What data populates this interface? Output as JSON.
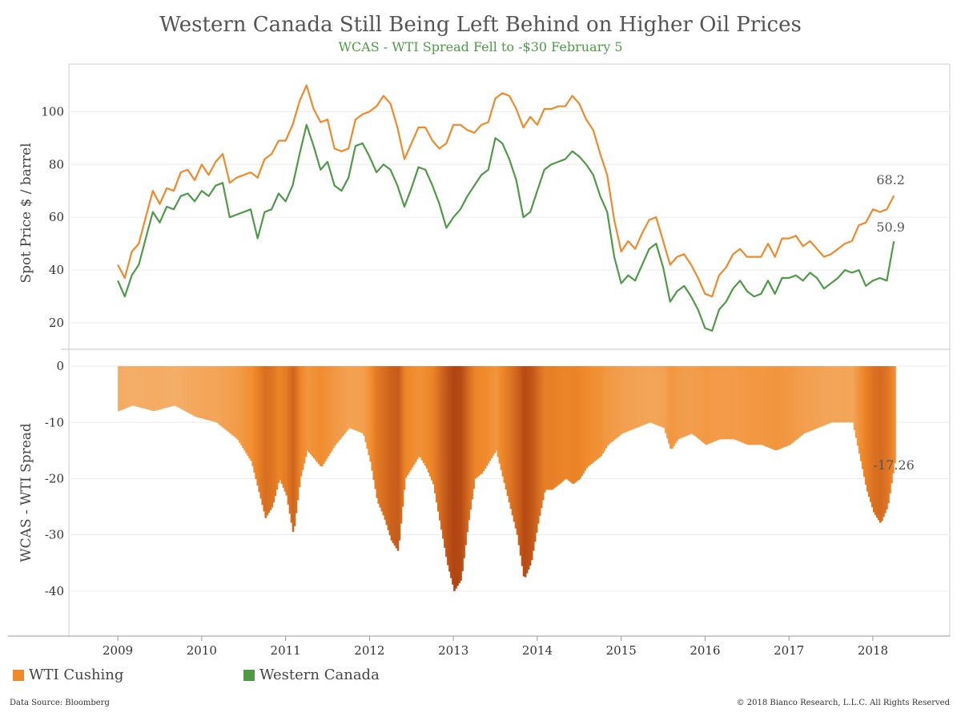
{
  "chart_data": {
    "type": "line",
    "title": "Western Canada Still Being Left Behind on Higher Oil Prices",
    "subtitle": "WCAS - WTI Spread Fell to -$30 February 5",
    "colors": {
      "wti": "#F0892A",
      "wcs": "#4E9A46",
      "subtitle": "#4E9A46"
    },
    "top_panel": {
      "ylabel": "Spot Price $ / barrel",
      "ylim": [
        10,
        118
      ],
      "yticks": [
        "20",
        "40",
        "60",
        "80",
        "100"
      ],
      "grid": true
    },
    "bottom_panel": {
      "type": "bar",
      "ylabel": "WCAS - WTI Spread",
      "ylim": [
        -48,
        3
      ],
      "yticks": [
        "0",
        "-10",
        "-20",
        "-30",
        "-40"
      ],
      "grid": true
    },
    "x": {
      "ticks": [
        "2009",
        "2010",
        "2011",
        "2012",
        "2013",
        "2014",
        "2015",
        "2016",
        "2017",
        "2018"
      ],
      "range": [
        "2008-06",
        "2018-12"
      ]
    },
    "series": [
      {
        "name": "WTI Cushing",
        "points": [
          [
            "2009-01",
            42
          ],
          [
            "2009-02",
            37
          ],
          [
            "2009-03",
            47
          ],
          [
            "2009-04",
            50
          ],
          [
            "2009-05",
            60
          ],
          [
            "2009-06",
            70
          ],
          [
            "2009-07",
            65
          ],
          [
            "2009-08",
            71
          ],
          [
            "2009-09",
            70
          ],
          [
            "2009-10",
            77
          ],
          [
            "2009-11",
            78
          ],
          [
            "2009-12",
            74
          ],
          [
            "2010-01",
            80
          ],
          [
            "2010-02",
            76
          ],
          [
            "2010-03",
            81
          ],
          [
            "2010-04",
            84
          ],
          [
            "2010-05",
            73
          ],
          [
            "2010-06",
            75
          ],
          [
            "2010-07",
            76
          ],
          [
            "2010-08",
            77
          ],
          [
            "2010-09",
            75
          ],
          [
            "2010-10",
            82
          ],
          [
            "2010-11",
            84
          ],
          [
            "2010-12",
            89
          ],
          [
            "2011-01",
            89
          ],
          [
            "2011-02",
            95
          ],
          [
            "2011-03",
            104
          ],
          [
            "2011-04",
            110
          ],
          [
            "2011-05",
            101
          ],
          [
            "2011-06",
            96
          ],
          [
            "2011-07",
            97
          ],
          [
            "2011-08",
            86
          ],
          [
            "2011-09",
            85
          ],
          [
            "2011-10",
            86
          ],
          [
            "2011-11",
            97
          ],
          [
            "2011-12",
            99
          ],
          [
            "2012-01",
            100
          ],
          [
            "2012-02",
            102
          ],
          [
            "2012-03",
            106
          ],
          [
            "2012-04",
            103
          ],
          [
            "2012-05",
            94
          ],
          [
            "2012-06",
            82
          ],
          [
            "2012-07",
            88
          ],
          [
            "2012-08",
            94
          ],
          [
            "2012-09",
            94
          ],
          [
            "2012-10",
            89
          ],
          [
            "2012-11",
            86
          ],
          [
            "2012-12",
            88
          ],
          [
            "2013-01",
            95
          ],
          [
            "2013-02",
            95
          ],
          [
            "2013-03",
            93
          ],
          [
            "2013-04",
            92
          ],
          [
            "2013-05",
            95
          ],
          [
            "2013-06",
            96
          ],
          [
            "2013-07",
            105
          ],
          [
            "2013-08",
            107
          ],
          [
            "2013-09",
            106
          ],
          [
            "2013-10",
            101
          ],
          [
            "2013-11",
            94
          ],
          [
            "2013-12",
            98
          ],
          [
            "2014-01",
            95
          ],
          [
            "2014-02",
            101
          ],
          [
            "2014-03",
            101
          ],
          [
            "2014-04",
            102
          ],
          [
            "2014-05",
            102
          ],
          [
            "2014-06",
            106
          ],
          [
            "2014-07",
            103
          ],
          [
            "2014-08",
            97
          ],
          [
            "2014-09",
            93
          ],
          [
            "2014-10",
            84
          ],
          [
            "2014-11",
            76
          ],
          [
            "2014-12",
            59
          ],
          [
            "2015-01",
            47
          ],
          [
            "2015-02",
            51
          ],
          [
            "2015-03",
            48
          ],
          [
            "2015-04",
            54
          ],
          [
            "2015-05",
            59
          ],
          [
            "2015-06",
            60
          ],
          [
            "2015-07",
            51
          ],
          [
            "2015-08",
            42
          ],
          [
            "2015-09",
            45
          ],
          [
            "2015-10",
            46
          ],
          [
            "2015-11",
            42
          ],
          [
            "2015-12",
            37
          ],
          [
            "2016-01",
            31
          ],
          [
            "2016-02",
            30
          ],
          [
            "2016-03",
            38
          ],
          [
            "2016-04",
            41
          ],
          [
            "2016-05",
            46
          ],
          [
            "2016-06",
            48
          ],
          [
            "2016-07",
            45
          ],
          [
            "2016-08",
            45
          ],
          [
            "2016-09",
            45
          ],
          [
            "2016-10",
            50
          ],
          [
            "2016-11",
            45
          ],
          [
            "2016-12",
            52
          ],
          [
            "2017-01",
            52
          ],
          [
            "2017-02",
            53
          ],
          [
            "2017-03",
            49
          ],
          [
            "2017-04",
            51
          ],
          [
            "2017-05",
            48
          ],
          [
            "2017-06",
            45
          ],
          [
            "2017-07",
            46
          ],
          [
            "2017-08",
            48
          ],
          [
            "2017-09",
            50
          ],
          [
            "2017-10",
            51
          ],
          [
            "2017-11",
            57
          ],
          [
            "2017-12",
            58
          ],
          [
            "2018-01",
            63
          ],
          [
            "2018-02",
            62
          ],
          [
            "2018-03",
            63
          ],
          [
            "2018-04",
            68.2
          ]
        ]
      },
      {
        "name": "Western Canada",
        "points": [
          [
            "2009-01",
            36
          ],
          [
            "2009-02",
            30
          ],
          [
            "2009-03",
            38
          ],
          [
            "2009-04",
            42
          ],
          [
            "2009-05",
            52
          ],
          [
            "2009-06",
            62
          ],
          [
            "2009-07",
            58
          ],
          [
            "2009-08",
            64
          ],
          [
            "2009-09",
            63
          ],
          [
            "2009-10",
            68
          ],
          [
            "2009-11",
            69
          ],
          [
            "2009-12",
            66
          ],
          [
            "2010-01",
            70
          ],
          [
            "2010-02",
            68
          ],
          [
            "2010-03",
            72
          ],
          [
            "2010-04",
            73
          ],
          [
            "2010-05",
            60
          ],
          [
            "2010-06",
            61
          ],
          [
            "2010-07",
            62
          ],
          [
            "2010-08",
            63
          ],
          [
            "2010-09",
            52
          ],
          [
            "2010-10",
            62
          ],
          [
            "2010-11",
            63
          ],
          [
            "2010-12",
            69
          ],
          [
            "2011-01",
            66
          ],
          [
            "2011-02",
            72
          ],
          [
            "2011-03",
            84
          ],
          [
            "2011-04",
            95
          ],
          [
            "2011-05",
            87
          ],
          [
            "2011-06",
            78
          ],
          [
            "2011-07",
            81
          ],
          [
            "2011-08",
            72
          ],
          [
            "2011-09",
            70
          ],
          [
            "2011-10",
            75
          ],
          [
            "2011-11",
            87
          ],
          [
            "2011-12",
            88
          ],
          [
            "2012-01",
            83
          ],
          [
            "2012-02",
            77
          ],
          [
            "2012-03",
            80
          ],
          [
            "2012-04",
            78
          ],
          [
            "2012-05",
            72
          ],
          [
            "2012-06",
            64
          ],
          [
            "2012-07",
            71
          ],
          [
            "2012-08",
            79
          ],
          [
            "2012-09",
            78
          ],
          [
            "2012-10",
            72
          ],
          [
            "2012-11",
            65
          ],
          [
            "2012-12",
            56
          ],
          [
            "2013-01",
            60
          ],
          [
            "2013-02",
            63
          ],
          [
            "2013-03",
            68
          ],
          [
            "2013-04",
            72
          ],
          [
            "2013-05",
            76
          ],
          [
            "2013-06",
            78
          ],
          [
            "2013-07",
            90
          ],
          [
            "2013-08",
            88
          ],
          [
            "2013-09",
            82
          ],
          [
            "2013-10",
            74
          ],
          [
            "2013-11",
            60
          ],
          [
            "2013-12",
            62
          ],
          [
            "2014-01",
            70
          ],
          [
            "2014-02",
            78
          ],
          [
            "2014-03",
            80
          ],
          [
            "2014-04",
            81
          ],
          [
            "2014-05",
            82
          ],
          [
            "2014-06",
            85
          ],
          [
            "2014-07",
            83
          ],
          [
            "2014-08",
            80
          ],
          [
            "2014-09",
            76
          ],
          [
            "2014-10",
            68
          ],
          [
            "2014-11",
            62
          ],
          [
            "2014-12",
            45
          ],
          [
            "2015-01",
            35
          ],
          [
            "2015-02",
            38
          ],
          [
            "2015-03",
            36
          ],
          [
            "2015-04",
            42
          ],
          [
            "2015-05",
            48
          ],
          [
            "2015-06",
            50
          ],
          [
            "2015-07",
            41
          ],
          [
            "2015-08",
            28
          ],
          [
            "2015-09",
            32
          ],
          [
            "2015-10",
            34
          ],
          [
            "2015-11",
            30
          ],
          [
            "2015-12",
            25
          ],
          [
            "2016-01",
            18
          ],
          [
            "2016-02",
            17
          ],
          [
            "2016-03",
            25
          ],
          [
            "2016-04",
            28
          ],
          [
            "2016-05",
            33
          ],
          [
            "2016-06",
            36
          ],
          [
            "2016-07",
            32
          ],
          [
            "2016-08",
            30
          ],
          [
            "2016-09",
            31
          ],
          [
            "2016-10",
            36
          ],
          [
            "2016-11",
            31
          ],
          [
            "2016-12",
            37
          ],
          [
            "2017-01",
            37
          ],
          [
            "2017-02",
            38
          ],
          [
            "2017-03",
            36
          ],
          [
            "2017-04",
            39
          ],
          [
            "2017-05",
            37
          ],
          [
            "2017-06",
            33
          ],
          [
            "2017-07",
            35
          ],
          [
            "2017-08",
            37
          ],
          [
            "2017-09",
            40
          ],
          [
            "2017-10",
            39
          ],
          [
            "2017-11",
            40
          ],
          [
            "2017-12",
            34
          ],
          [
            "2018-01",
            36
          ],
          [
            "2018-02",
            37
          ],
          [
            "2018-03",
            36
          ],
          [
            "2018-04",
            50.9
          ]
        ]
      }
    ],
    "spread": [
      [
        "2009-01",
        -8
      ],
      [
        "2009-03",
        -7
      ],
      [
        "2009-06",
        -8
      ],
      [
        "2009-09",
        -7
      ],
      [
        "2009-12",
        -9
      ],
      [
        "2010-03",
        -10
      ],
      [
        "2010-06",
        -13
      ],
      [
        "2010-08",
        -17
      ],
      [
        "2010-09",
        -22
      ],
      [
        "2010-10",
        -27
      ],
      [
        "2010-11",
        -25
      ],
      [
        "2010-12",
        -20
      ],
      [
        "2011-01",
        -23
      ],
      [
        "2011-02",
        -30
      ],
      [
        "2011-03",
        -20
      ],
      [
        "2011-04",
        -15
      ],
      [
        "2011-06",
        -18
      ],
      [
        "2011-08",
        -14
      ],
      [
        "2011-10",
        -11
      ],
      [
        "2011-12",
        -12
      ],
      [
        "2012-01",
        -17
      ],
      [
        "2012-02",
        -24
      ],
      [
        "2012-03",
        -27
      ],
      [
        "2012-04",
        -31
      ],
      [
        "2012-05",
        -33
      ],
      [
        "2012-06",
        -20
      ],
      [
        "2012-08",
        -16
      ],
      [
        "2012-09",
        -18
      ],
      [
        "2012-10",
        -21
      ],
      [
        "2012-11",
        -28
      ],
      [
        "2012-12",
        -35
      ],
      [
        "2013-01",
        -40
      ],
      [
        "2013-02",
        -38
      ],
      [
        "2013-03",
        -28
      ],
      [
        "2013-04",
        -20
      ],
      [
        "2013-05",
        -19
      ],
      [
        "2013-06",
        -17
      ],
      [
        "2013-07",
        -15
      ],
      [
        "2013-08",
        -20
      ],
      [
        "2013-09",
        -25
      ],
      [
        "2013-10",
        -30
      ],
      [
        "2013-11",
        -38
      ],
      [
        "2013-12",
        -35
      ],
      [
        "2014-01",
        -28
      ],
      [
        "2014-02",
        -22
      ],
      [
        "2014-03",
        -22
      ],
      [
        "2014-04",
        -21
      ],
      [
        "2014-05",
        -20
      ],
      [
        "2014-06",
        -21
      ],
      [
        "2014-07",
        -20
      ],
      [
        "2014-08",
        -18
      ],
      [
        "2014-09",
        -17
      ],
      [
        "2014-10",
        -16
      ],
      [
        "2014-11",
        -14
      ],
      [
        "2014-12",
        -13
      ],
      [
        "2015-01",
        -12
      ],
      [
        "2015-03",
        -11
      ],
      [
        "2015-05",
        -10
      ],
      [
        "2015-07",
        -11
      ],
      [
        "2015-08",
        -15
      ],
      [
        "2015-09",
        -13
      ],
      [
        "2015-11",
        -12
      ],
      [
        "2016-01",
        -14
      ],
      [
        "2016-03",
        -13
      ],
      [
        "2016-05",
        -13
      ],
      [
        "2016-07",
        -14
      ],
      [
        "2016-09",
        -14
      ],
      [
        "2016-11",
        -15
      ],
      [
        "2017-01",
        -14
      ],
      [
        "2017-03",
        -12
      ],
      [
        "2017-05",
        -11
      ],
      [
        "2017-07",
        -10
      ],
      [
        "2017-09",
        -10
      ],
      [
        "2017-10",
        -10
      ],
      [
        "2017-11",
        -16
      ],
      [
        "2017-12",
        -22
      ],
      [
        "2018-01",
        -26
      ],
      [
        "2018-02",
        -28
      ],
      [
        "2018-03",
        -25
      ],
      [
        "2018-04",
        -17.26
      ]
    ],
    "annotations": [
      {
        "text": "68.2",
        "x": "2018-04",
        "y": 68.2,
        "panel": "top"
      },
      {
        "text": "50.9",
        "x": "2018-04",
        "y": 50.9,
        "panel": "top"
      },
      {
        "text": "-17.26",
        "x": "2018-04",
        "y": -17.26,
        "panel": "bottom"
      }
    ],
    "legend": {
      "placement": "bottom-left",
      "items": [
        {
          "label": "WTI Cushing",
          "color": "#F0892A"
        },
        {
          "label": "Western Canada",
          "color": "#4E9A46"
        }
      ]
    }
  },
  "footer": {
    "source": "Data Source: Bloomberg",
    "copyright": "© 2018 Bianco Research, L.L.C. All Rights Reserved"
  }
}
